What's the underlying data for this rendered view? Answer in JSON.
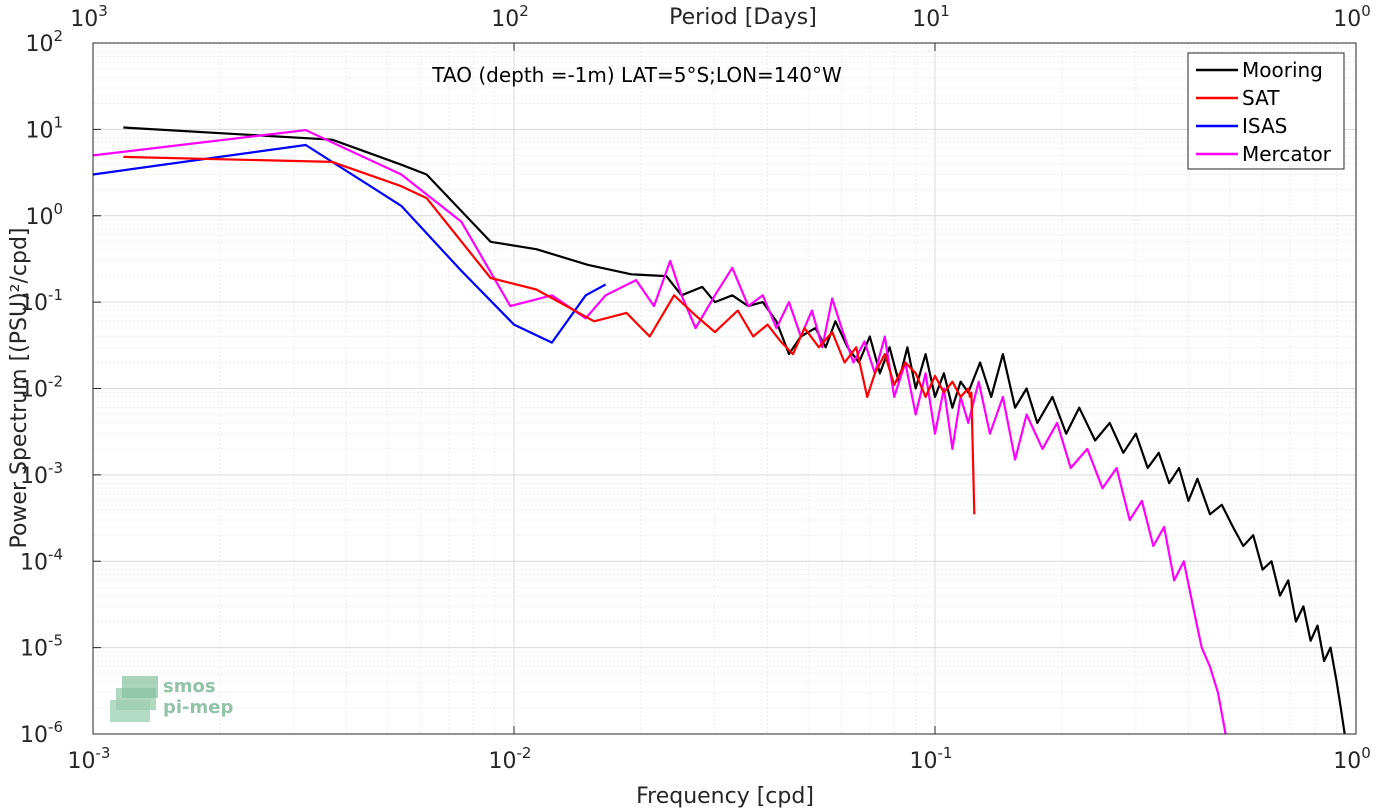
{
  "chart_data": {
    "type": "line",
    "title": "TAO (depth =-1m) LAT=5°S;LON=140°W",
    "xlabel": "Frequency [cpd]",
    "ylabel": "Power Spectrum [(PSU)²/cpd]",
    "top_xlabel": "Period [Days]",
    "x_scale": "log",
    "y_scale": "log",
    "xlim": [
      0.001,
      1
    ],
    "ylim": [
      1e-06,
      100
    ],
    "x_ticks": [
      {
        "value": 0.001,
        "base": "10",
        "exp": "-3"
      },
      {
        "value": 0.01,
        "base": "10",
        "exp": "-2"
      },
      {
        "value": 0.1,
        "base": "10",
        "exp": "-1"
      },
      {
        "value": 1,
        "base": "10",
        "exp": "0"
      }
    ],
    "top_ticks": [
      {
        "value": 1000,
        "base": "10",
        "exp": "3"
      },
      {
        "value": 100,
        "base": "10",
        "exp": "2"
      },
      {
        "value": 10,
        "base": "10",
        "exp": "1"
      },
      {
        "value": 1,
        "base": "10",
        "exp": "0"
      }
    ],
    "y_ticks": [
      {
        "value": 100,
        "base": "10",
        "exp": "2"
      },
      {
        "value": 10,
        "base": "10",
        "exp": "1"
      },
      {
        "value": 1,
        "base": "10",
        "exp": "0"
      },
      {
        "value": 0.1,
        "base": "10",
        "exp": "-1"
      },
      {
        "value": 0.01,
        "base": "10",
        "exp": "-2"
      },
      {
        "value": 0.001,
        "base": "10",
        "exp": "-3"
      },
      {
        "value": 0.0001,
        "base": "10",
        "exp": "-4"
      },
      {
        "value": 1e-05,
        "base": "10",
        "exp": "-5"
      },
      {
        "value": 1e-06,
        "base": "10",
        "exp": "-6"
      }
    ],
    "grid": true,
    "legend_position": "top-right",
    "series": [
      {
        "name": "Mooring",
        "color": "#000000",
        "x": [
          0.00118,
          0.0037,
          0.0054,
          0.0062,
          0.0088,
          0.0113,
          0.015,
          0.019,
          0.023,
          0.025,
          0.028,
          0.03,
          0.033,
          0.036,
          0.039,
          0.042,
          0.045,
          0.048,
          0.052,
          0.055,
          0.058,
          0.062,
          0.066,
          0.07,
          0.074,
          0.078,
          0.082,
          0.086,
          0.09,
          0.095,
          0.1,
          0.105,
          0.11,
          0.115,
          0.12,
          0.128,
          0.136,
          0.145,
          0.155,
          0.165,
          0.175,
          0.19,
          0.205,
          0.22,
          0.24,
          0.26,
          0.28,
          0.3,
          0.32,
          0.34,
          0.36,
          0.38,
          0.4,
          0.42,
          0.45,
          0.48,
          0.51,
          0.54,
          0.57,
          0.6,
          0.63,
          0.66,
          0.69,
          0.72,
          0.75,
          0.78,
          0.81,
          0.84,
          0.87,
          0.9,
          0.92,
          0.94
        ],
        "y": [
          10.5,
          7.6,
          3.9,
          3.0,
          0.5,
          0.41,
          0.27,
          0.21,
          0.2,
          0.12,
          0.15,
          0.1,
          0.12,
          0.09,
          0.1,
          0.06,
          0.025,
          0.04,
          0.05,
          0.03,
          0.06,
          0.03,
          0.02,
          0.04,
          0.015,
          0.03,
          0.012,
          0.03,
          0.01,
          0.025,
          0.008,
          0.015,
          0.006,
          0.012,
          0.009,
          0.02,
          0.008,
          0.025,
          0.006,
          0.01,
          0.004,
          0.008,
          0.003,
          0.006,
          0.0025,
          0.004,
          0.0018,
          0.003,
          0.0012,
          0.0018,
          0.0008,
          0.0012,
          0.0005,
          0.0009,
          0.00035,
          0.00045,
          0.00025,
          0.00015,
          0.0002,
          8e-05,
          0.0001,
          4e-05,
          6e-05,
          2e-05,
          3e-05,
          1.2e-05,
          1.8e-05,
          7e-06,
          1e-05,
          4e-06,
          2e-06,
          1e-06
        ]
      },
      {
        "name": "SAT",
        "color": "#ff0000",
        "x": [
          0.00118,
          0.0037,
          0.0054,
          0.0062,
          0.0088,
          0.0113,
          0.0155,
          0.0185,
          0.021,
          0.024,
          0.027,
          0.03,
          0.034,
          0.037,
          0.04,
          0.043,
          0.046,
          0.049,
          0.053,
          0.057,
          0.061,
          0.065,
          0.069,
          0.072,
          0.076,
          0.08,
          0.085,
          0.09,
          0.095,
          0.1,
          0.105,
          0.11,
          0.115,
          0.12,
          0.121,
          0.122,
          0.124
        ],
        "y": [
          4.8,
          4.2,
          2.2,
          1.6,
          0.19,
          0.14,
          0.06,
          0.075,
          0.04,
          0.12,
          0.07,
          0.045,
          0.08,
          0.04,
          0.055,
          0.035,
          0.025,
          0.05,
          0.03,
          0.045,
          0.02,
          0.03,
          0.008,
          0.015,
          0.025,
          0.011,
          0.02,
          0.015,
          0.008,
          0.014,
          0.009,
          0.012,
          0.008,
          0.01,
          0.008,
          0.009,
          0.00035
        ]
      },
      {
        "name": "ISAS",
        "color": "#0000ff",
        "x": [
          0.001,
          0.0032,
          0.0054,
          0.0075,
          0.01,
          0.0123,
          0.0148,
          0.0165
        ],
        "y": [
          3.0,
          6.6,
          1.3,
          0.23,
          0.055,
          0.034,
          0.12,
          0.16
        ]
      },
      {
        "name": "Mercator",
        "color": "#ff00ff",
        "x": [
          0.001,
          0.0032,
          0.0054,
          0.0075,
          0.0098,
          0.0123,
          0.0148,
          0.0165,
          0.0195,
          0.0215,
          0.0235,
          0.025,
          0.027,
          0.03,
          0.033,
          0.036,
          0.039,
          0.042,
          0.045,
          0.048,
          0.051,
          0.054,
          0.057,
          0.06,
          0.064,
          0.068,
          0.072,
          0.076,
          0.08,
          0.085,
          0.09,
          0.095,
          0.1,
          0.105,
          0.11,
          0.115,
          0.12,
          0.127,
          0.135,
          0.145,
          0.155,
          0.165,
          0.18,
          0.195,
          0.21,
          0.23,
          0.25,
          0.27,
          0.29,
          0.31,
          0.33,
          0.35,
          0.37,
          0.39,
          0.41,
          0.43,
          0.45,
          0.47,
          0.49
        ],
        "y": [
          5.0,
          9.8,
          3.0,
          0.85,
          0.09,
          0.12,
          0.065,
          0.12,
          0.18,
          0.09,
          0.3,
          0.12,
          0.05,
          0.12,
          0.25,
          0.09,
          0.12,
          0.05,
          0.1,
          0.04,
          0.08,
          0.03,
          0.11,
          0.05,
          0.02,
          0.035,
          0.015,
          0.04,
          0.008,
          0.02,
          0.005,
          0.015,
          0.003,
          0.01,
          0.002,
          0.008,
          0.004,
          0.012,
          0.003,
          0.008,
          0.0015,
          0.005,
          0.002,
          0.004,
          0.0012,
          0.002,
          0.0007,
          0.0012,
          0.0003,
          0.0005,
          0.00015,
          0.00025,
          6e-05,
          0.0001,
          3e-05,
          1e-05,
          6e-06,
          3e-06,
          1e-06
        ]
      }
    ]
  },
  "logo": {
    "line1": "smos",
    "line2": "pi-mep"
  }
}
